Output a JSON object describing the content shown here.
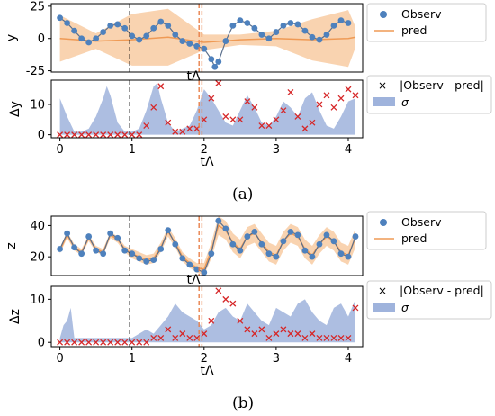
{
  "captions": {
    "a": "(a)",
    "b": "(b)"
  },
  "colors": {
    "observed": "#4e81bd",
    "pred": "#ef9a55",
    "band": "#f6c08f",
    "sigma_fill": "#9fb3dc",
    "abs_err": "#d62728",
    "cut_black": "#000000",
    "cut_orange": "#e8804a"
  },
  "chart_data": [
    {
      "id": "a-top",
      "type": "line",
      "ylabel": "y",
      "xlabel": "tΛ",
      "xlim": [
        -0.12,
        4.2
      ],
      "ylim": [
        -26,
        27
      ],
      "yticks": [
        -25,
        0,
        25
      ],
      "vlines": [
        {
          "x": 0.97,
          "color": "black"
        },
        {
          "x": 1.93,
          "color": "orange"
        },
        {
          "x": 1.97,
          "color": "orange"
        }
      ],
      "legend": [
        "Observ",
        "pred"
      ],
      "observed": {
        "x": [
          0.0,
          0.1,
          0.2,
          0.3,
          0.4,
          0.5,
          0.6,
          0.7,
          0.8,
          0.9,
          1.0,
          1.1,
          1.2,
          1.3,
          1.4,
          1.5,
          1.6,
          1.7,
          1.8,
          1.9,
          2.0,
          2.1,
          2.15,
          2.2,
          2.3,
          2.4,
          2.5,
          2.6,
          2.7,
          2.8,
          2.9,
          3.0,
          3.1,
          3.2,
          3.3,
          3.4,
          3.5,
          3.6,
          3.7,
          3.8,
          3.9,
          4.0
        ],
        "y": [
          16,
          12,
          6,
          0,
          -3,
          0,
          5,
          10,
          11,
          8,
          2,
          -1,
          2,
          8,
          13,
          10,
          3,
          -2,
          -4,
          -6,
          -8,
          -16,
          -22,
          -18,
          -2,
          10,
          14,
          12,
          8,
          3,
          0,
          5,
          10,
          12,
          11,
          6,
          1,
          -1,
          3,
          10,
          14,
          12
        ]
      },
      "pred": {
        "x": [
          0.0,
          0.5,
          1.0,
          1.5,
          2.0,
          2.5,
          3.0,
          3.5,
          4.0,
          4.1
        ],
        "y": [
          0,
          -2,
          -1,
          1,
          -3,
          -1,
          0,
          -1,
          0,
          1
        ]
      },
      "band_half_width": [
        18,
        6,
        20,
        22,
        6,
        4,
        6,
        16,
        22,
        8
      ]
    },
    {
      "id": "a-bottom",
      "type": "area",
      "ylabel": "Δy",
      "xlabel": "tΛ",
      "xlim": [
        -0.12,
        4.2
      ],
      "ylim": [
        -1,
        18
      ],
      "yticks": [
        0,
        10
      ],
      "xticks": [
        0,
        1,
        2,
        3,
        4
      ],
      "legend": [
        "|Observ - pred|",
        "σ"
      ],
      "sigma": {
        "x": [
          0.0,
          0.1,
          0.2,
          0.3,
          0.4,
          0.5,
          0.6,
          0.65,
          0.7,
          0.8,
          0.9,
          1.0,
          1.1,
          1.2,
          1.3,
          1.35,
          1.4,
          1.5,
          1.6,
          1.7,
          1.8,
          1.9,
          2.0,
          2.1,
          2.2,
          2.3,
          2.4,
          2.5,
          2.6,
          2.7,
          2.8,
          2.9,
          3.0,
          3.1,
          3.2,
          3.3,
          3.4,
          3.5,
          3.6,
          3.7,
          3.8,
          3.9,
          4.0,
          4.1
        ],
        "y": [
          12,
          6,
          1,
          1,
          2,
          6,
          12,
          16,
          13,
          4,
          1,
          1,
          2,
          8,
          16,
          17,
          12,
          4,
          1,
          2,
          3,
          8,
          15,
          12,
          8,
          4,
          3,
          8,
          13,
          9,
          4,
          3,
          6,
          11,
          9,
          6,
          12,
          14,
          8,
          3,
          2,
          6,
          11,
          12
        ]
      },
      "abs_err": {
        "x": [
          0.0,
          0.1,
          0.2,
          0.3,
          0.4,
          0.5,
          0.6,
          0.7,
          0.8,
          0.9,
          1.0,
          1.1,
          1.2,
          1.3,
          1.4,
          1.5,
          1.6,
          1.7,
          1.8,
          1.9,
          2.0,
          2.1,
          2.2,
          2.3,
          2.4,
          2.5,
          2.6,
          2.7,
          2.8,
          2.9,
          3.0,
          3.1,
          3.2,
          3.3,
          3.4,
          3.5,
          3.6,
          3.7,
          3.8,
          3.9,
          4.0,
          4.1
        ],
        "y": [
          0,
          0,
          0,
          0,
          0,
          0,
          0,
          0,
          0,
          0,
          0,
          0,
          3,
          9,
          16,
          4,
          1,
          1,
          2,
          2,
          5,
          12,
          17,
          6,
          5,
          5,
          11,
          9,
          3,
          3,
          5,
          8,
          14,
          6,
          2,
          4,
          10,
          13,
          9,
          12,
          15,
          13
        ]
      }
    },
    {
      "id": "b-top",
      "type": "line",
      "ylabel": "z",
      "xlabel": "tΛ",
      "xlim": [
        -0.12,
        4.2
      ],
      "ylim": [
        8,
        46
      ],
      "yticks": [
        20,
        40
      ],
      "vlines": [
        {
          "x": 0.97,
          "color": "black"
        },
        {
          "x": 1.93,
          "color": "orange"
        },
        {
          "x": 1.97,
          "color": "orange"
        }
      ],
      "legend": [
        "Observ",
        "pred"
      ],
      "observed": {
        "x": [
          0.0,
          0.1,
          0.2,
          0.3,
          0.4,
          0.5,
          0.6,
          0.7,
          0.8,
          0.9,
          1.0,
          1.1,
          1.2,
          1.3,
          1.4,
          1.5,
          1.6,
          1.7,
          1.8,
          1.9,
          2.0,
          2.1,
          2.2,
          2.3,
          2.4,
          2.5,
          2.6,
          2.7,
          2.8,
          2.9,
          3.0,
          3.1,
          3.2,
          3.3,
          3.4,
          3.5,
          3.6,
          3.7,
          3.8,
          3.9,
          4.0,
          4.1
        ],
        "y": [
          25,
          35,
          26,
          22,
          33,
          24,
          22,
          35,
          32,
          24,
          22,
          19,
          17,
          18,
          25,
          37,
          28,
          19,
          15,
          12,
          10,
          22,
          43,
          38,
          28,
          24,
          33,
          36,
          28,
          22,
          20,
          30,
          36,
          34,
          24,
          20,
          28,
          34,
          30,
          22,
          20,
          33
        ]
      },
      "pred": {
        "x": [
          0.0,
          0.1,
          0.2,
          0.3,
          0.4,
          0.5,
          0.6,
          0.7,
          0.8,
          0.9,
          1.0,
          1.1,
          1.2,
          1.3,
          1.4,
          1.5,
          1.6,
          1.7,
          1.8,
          1.9,
          2.0,
          2.1,
          2.2,
          2.3,
          2.4,
          2.5,
          2.6,
          2.7,
          2.8,
          2.9,
          3.0,
          3.1,
          3.2,
          3.3,
          3.4,
          3.5,
          3.6,
          3.7,
          3.8,
          3.9,
          4.0,
          4.1
        ],
        "y": [
          24,
          34,
          26,
          23,
          32,
          25,
          23,
          34,
          31,
          25,
          22,
          20,
          18,
          19,
          26,
          36,
          29,
          20,
          16,
          13,
          12,
          24,
          40,
          37,
          29,
          25,
          33,
          35,
          29,
          23,
          21,
          30,
          35,
          33,
          25,
          21,
          28,
          33,
          30,
          23,
          21,
          32
        ]
      },
      "band_half_width": [
        2,
        2,
        2,
        2,
        2,
        2,
        2,
        2,
        2,
        2,
        3,
        3,
        3,
        3,
        3,
        3,
        3,
        3,
        3,
        3,
        4,
        5,
        6,
        6,
        6,
        6,
        6,
        6,
        6,
        6,
        6,
        6,
        6,
        6,
        6,
        6,
        6,
        6,
        6,
        6,
        6,
        6
      ]
    },
    {
      "id": "b-bottom",
      "type": "area",
      "ylabel": "Δz",
      "xlabel": "tΛ",
      "xlim": [
        -0.12,
        4.2
      ],
      "ylim": [
        -1,
        13
      ],
      "yticks": [
        0,
        10
      ],
      "xticks": [
        0,
        1,
        2,
        3,
        4
      ],
      "legend": [
        "|Observ - pred|",
        "σ"
      ],
      "sigma": {
        "x": [
          0.0,
          0.05,
          0.1,
          0.15,
          0.2,
          0.3,
          0.4,
          0.5,
          0.6,
          0.7,
          0.8,
          0.9,
          1.0,
          1.1,
          1.2,
          1.3,
          1.4,
          1.5,
          1.6,
          1.7,
          1.8,
          1.9,
          2.0,
          2.1,
          2.2,
          2.3,
          2.4,
          2.5,
          2.6,
          2.7,
          2.8,
          2.9,
          3.0,
          3.1,
          3.2,
          3.3,
          3.4,
          3.5,
          3.6,
          3.7,
          3.8,
          3.9,
          4.0,
          4.1
        ],
        "y": [
          1,
          4,
          5,
          8,
          1,
          1,
          1,
          1,
          1,
          1,
          1,
          1,
          1,
          2,
          3,
          2,
          4,
          6,
          9,
          7,
          6,
          5,
          3,
          4,
          7,
          8,
          6,
          5,
          9,
          7,
          5,
          4,
          8,
          7,
          6,
          9,
          10,
          7,
          5,
          4,
          8,
          9,
          6,
          10
        ]
      },
      "abs_err": {
        "x": [
          0.0,
          0.1,
          0.2,
          0.3,
          0.4,
          0.5,
          0.6,
          0.7,
          0.8,
          0.9,
          1.0,
          1.1,
          1.2,
          1.3,
          1.4,
          1.5,
          1.6,
          1.7,
          1.8,
          1.9,
          2.0,
          2.1,
          2.2,
          2.3,
          2.4,
          2.5,
          2.6,
          2.7,
          2.8,
          2.9,
          3.0,
          3.1,
          3.2,
          3.3,
          3.4,
          3.5,
          3.6,
          3.7,
          3.8,
          3.9,
          4.0,
          4.1
        ],
        "y": [
          0,
          0,
          0,
          0,
          0,
          0,
          0,
          0,
          0,
          0,
          0,
          0,
          0,
          1,
          1,
          3,
          1,
          2,
          1,
          1,
          2,
          5,
          12,
          10,
          9,
          5,
          3,
          2,
          3,
          1,
          2,
          3,
          2,
          2,
          1,
          2,
          1,
          1,
          1,
          1,
          1,
          8
        ]
      }
    }
  ]
}
